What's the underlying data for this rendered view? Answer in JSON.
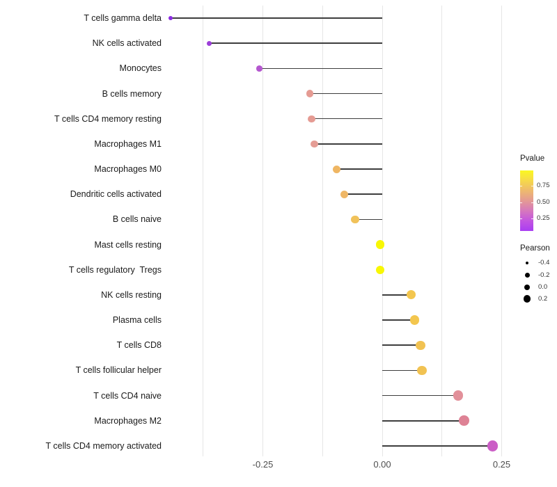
{
  "chart_data": {
    "type": "lollipop",
    "orientation": "horizontal",
    "title": "",
    "xlabel": "",
    "ylabel": "",
    "xlim": [
      -0.455,
      0.28
    ],
    "baseline": 0,
    "grid": "vertical-only",
    "gridline_values": [
      -0.375,
      -0.25,
      -0.125,
      0,
      0.125,
      0.25
    ],
    "x_ticks": [
      {
        "label": "-0.25",
        "value": -0.25
      },
      {
        "label": "0.00",
        "value": 0.0
      },
      {
        "label": "0.25",
        "value": 0.25
      }
    ],
    "points": [
      {
        "label": "T cells gamma delta",
        "pearson": -0.443,
        "color": "#8b2be2"
      },
      {
        "label": "NK cells activated",
        "pearson": -0.362,
        "color": "#9c3ed8"
      },
      {
        "label": "Monocytes",
        "pearson": -0.257,
        "color": "#b457cf"
      },
      {
        "label": "B cells memory",
        "pearson": -0.152,
        "color": "#e59b93"
      },
      {
        "label": "T cells CD4 memory resting",
        "pearson": -0.148,
        "color": "#e59b93"
      },
      {
        "label": "Macrophages M1",
        "pearson": -0.142,
        "color": "#e59d95"
      },
      {
        "label": "Macrophages M0",
        "pearson": -0.095,
        "color": "#efb663"
      },
      {
        "label": "Dendritic cells activated",
        "pearson": -0.08,
        "color": "#efb766"
      },
      {
        "label": "B cells naive",
        "pearson": -0.057,
        "color": "#f1c25a"
      },
      {
        "label": "Mast cells resting",
        "pearson": -0.004,
        "color": "#f8f704"
      },
      {
        "label": "T cells regulatory  Tregs",
        "pearson": -0.004,
        "color": "#f8f704"
      },
      {
        "label": "NK cells resting",
        "pearson": 0.061,
        "color": "#f3c64e"
      },
      {
        "label": "Plasma cells",
        "pearson": 0.068,
        "color": "#f3c64e"
      },
      {
        "label": "T cells CD8",
        "pearson": 0.08,
        "color": "#f1c252"
      },
      {
        "label": "T cells follicular helper",
        "pearson": 0.083,
        "color": "#f1c252"
      },
      {
        "label": "T cells CD4 naive",
        "pearson": 0.159,
        "color": "#e2909a"
      },
      {
        "label": "Macrophages M2",
        "pearson": 0.171,
        "color": "#de8295"
      },
      {
        "label": "T cells CD4 memory activated",
        "pearson": 0.231,
        "color": "#cb5ec6"
      }
    ],
    "stem_color": "#3d3d3d",
    "gridline_color": "#e6e6e6",
    "legends": {
      "color": {
        "title": "Pvalue",
        "tick_labels": [
          "0.75",
          "0.50",
          "0.25"
        ],
        "gradient_top_to_bottom": [
          "#fbf821",
          "#f6d94a",
          "#eeb96e",
          "#e49a94",
          "#d678bd",
          "#c255e0",
          "#a93ef2"
        ]
      },
      "size": {
        "title": "Pearson",
        "entries": [
          {
            "label": "-0.4",
            "diameter": 4.5
          },
          {
            "label": "-0.2",
            "diameter": 7
          },
          {
            "label": "0.0",
            "diameter": 8.5
          },
          {
            "label": "0.2",
            "diameter": 10.5
          }
        ],
        "dot_color": "#000000"
      }
    }
  }
}
